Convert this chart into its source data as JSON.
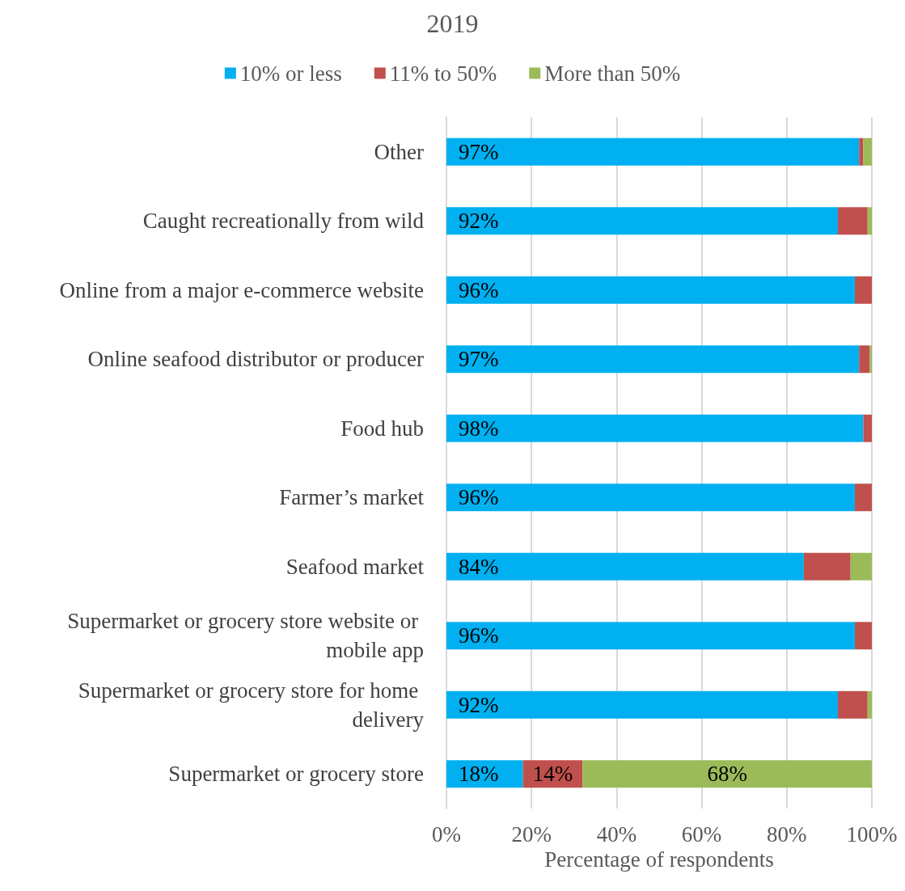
{
  "chart_data": {
    "type": "bar",
    "orientation": "horizontal",
    "stacked": true,
    "title": "2019",
    "xlabel": "Percentage of respondents",
    "categories": [
      "Other",
      "Caught recreationally from wild",
      "Online from a major e-commerce website",
      "Online seafood distributor or producer",
      "Food hub",
      "Farmer’s market",
      "Seafood market",
      "Supermarket or grocery store website or mobile app",
      "Supermarket or grocery store for home delivery",
      "Supermarket or grocery store"
    ],
    "series": [
      {
        "name": "10% or less",
        "color": "#00b0f0",
        "values": [
          97,
          92,
          96,
          97,
          98,
          96,
          84,
          96,
          92,
          18
        ],
        "value_labels": [
          "97%",
          "92%",
          "96%",
          "97%",
          "98%",
          "96%",
          "84%",
          "96%",
          "92%",
          "18%"
        ]
      },
      {
        "name": "11% to 50%",
        "color": "#c0504d",
        "values": [
          1,
          7,
          4,
          2.5,
          2,
          4,
          11,
          4,
          7,
          14
        ],
        "value_labels": [
          null,
          null,
          null,
          null,
          null,
          null,
          null,
          null,
          null,
          "14%"
        ]
      },
      {
        "name": "More than 50%",
        "color": "#9bbb59",
        "values": [
          2,
          1,
          0,
          0.5,
          0,
          0,
          5,
          0,
          1,
          68
        ],
        "value_labels": [
          null,
          null,
          null,
          null,
          null,
          null,
          null,
          null,
          null,
          "68%"
        ]
      }
    ],
    "xlim": [
      0,
      100
    ],
    "xticks": [
      {
        "value": 0,
        "label": "0%"
      },
      {
        "value": 20,
        "label": "20%"
      },
      {
        "value": 40,
        "label": "40%"
      },
      {
        "value": 60,
        "label": "60%"
      },
      {
        "value": 80,
        "label": "80%"
      },
      {
        "value": 100,
        "label": "100%"
      }
    ],
    "grid": "x",
    "legend": "top"
  }
}
